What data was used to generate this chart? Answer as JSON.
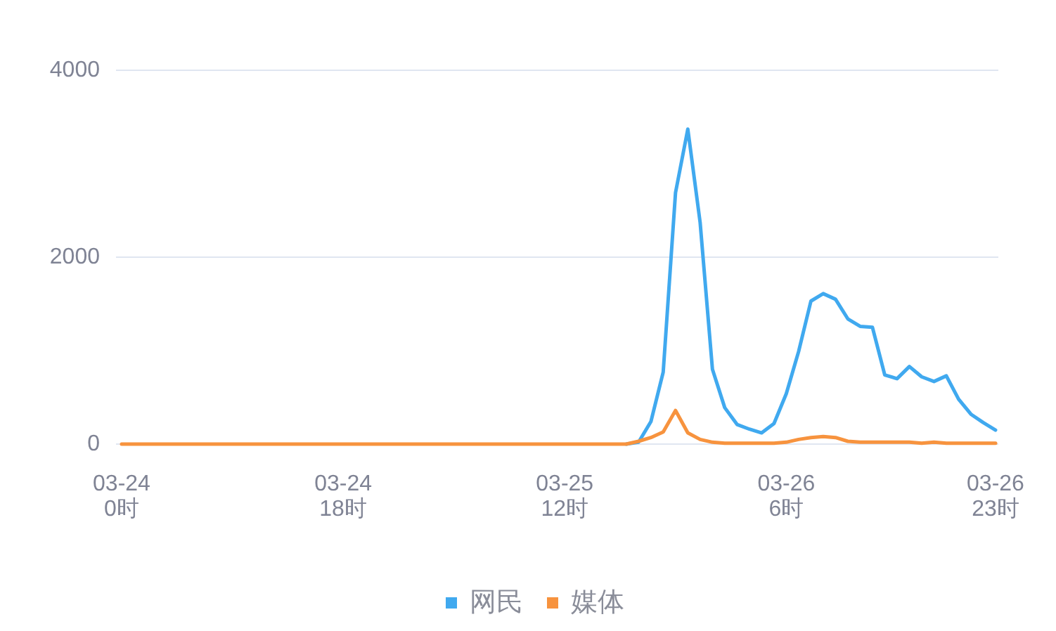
{
  "chart_data": {
    "type": "line",
    "categories": [
      "03-24\n0时",
      null,
      null,
      null,
      null,
      null,
      null,
      null,
      null,
      null,
      null,
      null,
      null,
      null,
      null,
      null,
      null,
      null,
      "03-24\n18时",
      null,
      null,
      null,
      null,
      null,
      null,
      null,
      null,
      null,
      null,
      null,
      null,
      null,
      null,
      null,
      null,
      null,
      "03-25\n12时",
      null,
      null,
      null,
      null,
      null,
      null,
      null,
      null,
      null,
      null,
      null,
      null,
      null,
      null,
      null,
      null,
      null,
      "03-26\n6时",
      null,
      null,
      null,
      null,
      null,
      null,
      null,
      null,
      null,
      null,
      null,
      null,
      null,
      null,
      null,
      null,
      "03-26\n23时"
    ],
    "series": [
      {
        "name": "网民",
        "color": "#40a9ef",
        "values": [
          null,
          null,
          null,
          null,
          null,
          null,
          null,
          null,
          null,
          null,
          null,
          null,
          null,
          null,
          null,
          null,
          null,
          null,
          null,
          null,
          null,
          null,
          null,
          null,
          null,
          null,
          null,
          null,
          null,
          null,
          null,
          null,
          null,
          null,
          null,
          null,
          null,
          null,
          null,
          null,
          null,
          0,
          20,
          240,
          770,
          2690,
          3370,
          2370,
          800,
          390,
          210,
          160,
          120,
          220,
          540,
          990,
          1530,
          1610,
          1550,
          1340,
          1260,
          1250,
          740,
          700,
          830,
          720,
          670,
          730,
          480,
          320,
          230,
          150
        ]
      },
      {
        "name": "媒体",
        "color": "#f7933e",
        "values": [
          0,
          0,
          0,
          0,
          0,
          0,
          0,
          0,
          0,
          0,
          0,
          0,
          0,
          0,
          0,
          0,
          0,
          0,
          0,
          0,
          0,
          0,
          0,
          0,
          0,
          0,
          0,
          0,
          0,
          0,
          0,
          0,
          0,
          0,
          0,
          0,
          0,
          0,
          0,
          0,
          0,
          0,
          30,
          70,
          130,
          360,
          120,
          50,
          20,
          10,
          10,
          10,
          10,
          10,
          20,
          50,
          70,
          80,
          70,
          30,
          20,
          20,
          20,
          20,
          20,
          10,
          20,
          10,
          10,
          10,
          10,
          10
        ]
      }
    ],
    "ylim": [
      0,
      4000
    ],
    "yticks": [
      0,
      2000,
      4000
    ],
    "grid": "y",
    "legend": "bottom",
    "line_style": "solid"
  }
}
